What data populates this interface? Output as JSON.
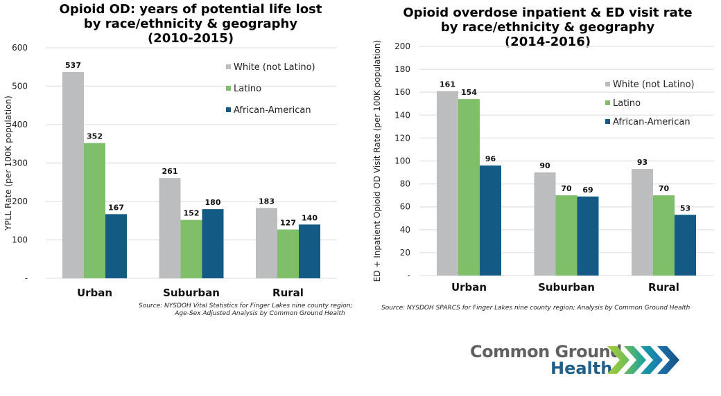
{
  "chart_data": [
    {
      "type": "bar",
      "title": [
        "Opioid OD: years of potential life lost",
        "by race/ethnicity & geography",
        "(2010-2015)"
      ],
      "xlabel": "",
      "ylabel": "YPLL Rate (per 100K population)",
      "ylim": [
        0,
        600
      ],
      "yticks": [
        0,
        100,
        200,
        300,
        400,
        500,
        600
      ],
      "ytick_labels": [
        "-",
        "100",
        "200",
        "300",
        "400",
        "500",
        "600"
      ],
      "grid": true,
      "legend_position": "top-right",
      "categories": [
        "Urban",
        "Suburban",
        "Rural"
      ],
      "series": [
        {
          "name": "White (not Latino)",
          "color": "#bcbdbf",
          "values": [
            537,
            261,
            183
          ]
        },
        {
          "name": "Latino",
          "color": "#80bf6a",
          "values": [
            352,
            152,
            127
          ]
        },
        {
          "name": "African-American",
          "color": "#135a84",
          "values": [
            167,
            180,
            140
          ]
        }
      ],
      "source": [
        "Source: NYSDOH Vital Statistics for Finger Lakes nine county region;",
        "Age-Sex Adjusted Analysis by Common Ground Health"
      ]
    },
    {
      "type": "bar",
      "title": [
        "Opioid overdose inpatient & ED visit rate",
        "by race/ethnicity & geography",
        "(2014-2016)"
      ],
      "xlabel": "",
      "ylabel": "ED + Inpatient Opioid OD Visit Rate (per 100K population)",
      "ylim": [
        0,
        200
      ],
      "yticks": [
        0,
        20,
        40,
        60,
        80,
        100,
        120,
        140,
        160,
        180,
        200
      ],
      "ytick_labels": [
        "-",
        "20",
        "40",
        "60",
        "80",
        "100",
        "120",
        "140",
        "160",
        "180",
        "200"
      ],
      "grid": true,
      "legend_position": "top-right",
      "categories": [
        "Urban",
        "Suburban",
        "Rural"
      ],
      "series": [
        {
          "name": "White (not Latino)",
          "color": "#bcbdbf",
          "values": [
            161,
            90,
            93
          ]
        },
        {
          "name": "Latino",
          "color": "#80bf6a",
          "values": [
            154,
            70,
            70
          ]
        },
        {
          "name": "African-American",
          "color": "#135a84",
          "values": [
            96,
            69,
            53
          ]
        }
      ],
      "source": [
        "Source: NYSDOH SPARCS for Finger Lakes nine county region; Analysis by Common Ground Health"
      ]
    }
  ],
  "logo": {
    "line1": "Common Ground",
    "line2": "Health",
    "icon": "chevron-arrows-icon"
  }
}
